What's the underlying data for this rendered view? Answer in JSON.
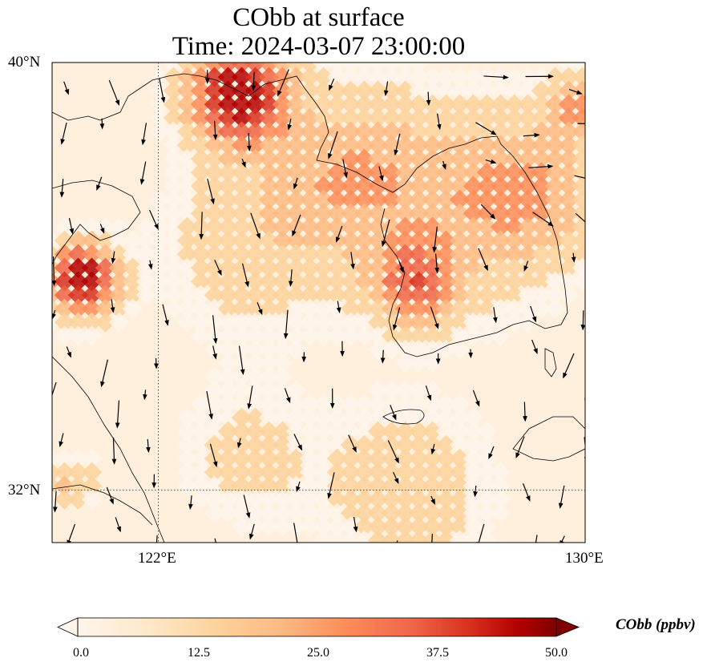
{
  "title": {
    "line1": "CObb at surface",
    "line2": "Time: 2024-03-07 23:00:00"
  },
  "map": {
    "extent": {
      "lon_min": 120,
      "lon_max": 130,
      "lat_min": 31,
      "lat_max": 40
    },
    "gridlines": {
      "lon": [
        122
      ],
      "lat": [
        32
      ],
      "style": "dotted"
    },
    "lat_ticks": [
      {
        "value": 40,
        "label": "40°N"
      },
      {
        "value": 32,
        "label": "32°N"
      }
    ],
    "lon_ticks": [
      {
        "value": 122,
        "label": "122°E"
      },
      {
        "value": 130,
        "label": "130°E"
      }
    ],
    "field": "CObb",
    "units": "ppbv",
    "colormap": [
      "#fff5eb",
      "#fdd49e",
      "#fdbb84",
      "#fc8d59",
      "#ef6548",
      "#d7301f",
      "#b30000",
      "#7f0000"
    ],
    "coastline_color": "#000000",
    "wind_vectors": "black arrows, predominantly north-to-south flow"
  },
  "colorbar": {
    "label": "CObb (ppbv)",
    "min": 0,
    "max": 50,
    "ticks": [
      "0.0",
      "12.5",
      "25.0",
      "37.5",
      "50.0"
    ],
    "extend": "both"
  }
}
